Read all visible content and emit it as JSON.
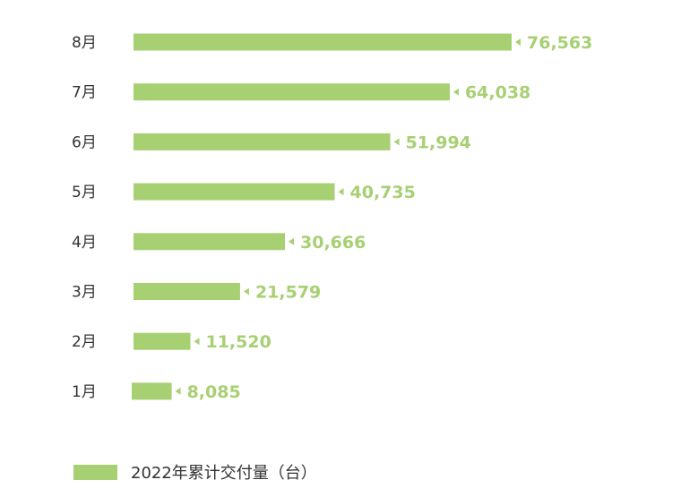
{
  "chart_data": {
    "type": "bar",
    "orientation": "horizontal",
    "categories": [
      "8月",
      "7月",
      "6月",
      "5月",
      "4月",
      "3月",
      "2月",
      "1月"
    ],
    "series": [
      {
        "name": "2022年累计交付量（台）",
        "values": [
          76563,
          64038,
          51994,
          40735,
          30666,
          21579,
          11520,
          8085
        ],
        "value_labels": [
          "76,563",
          "64,038",
          "51,994",
          "40,735",
          "30,666",
          "21,579",
          "11,520",
          "8,085"
        ]
      }
    ],
    "xlim": [
      0,
      76563
    ],
    "grid": false,
    "legend_position": "bottom-left",
    "bar_color": "#a7d073",
    "label_color": "#a7d073",
    "marker_color": "#a7d073"
  }
}
